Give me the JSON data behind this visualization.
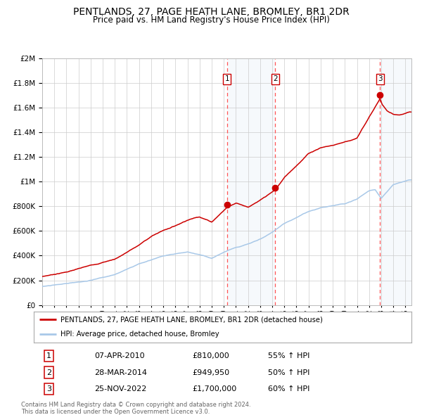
{
  "title": "PENTLANDS, 27, PAGE HEATH LANE, BROMLEY, BR1 2DR",
  "subtitle": "Price paid vs. HM Land Registry's House Price Index (HPI)",
  "title_fontsize": 10,
  "subtitle_fontsize": 8.5,
  "background_color": "#ffffff",
  "plot_bg_color": "#ffffff",
  "grid_color": "#cccccc",
  "red_line_color": "#cc0000",
  "blue_line_color": "#a8c8e8",
  "shade_color": "#dce9f5",
  "dashed_color": "#ff5555",
  "marker_color": "#cc0000",
  "sale_dates": [
    2010.27,
    2014.24,
    2022.9
  ],
  "sale_prices": [
    810000,
    949950,
    1700000
  ],
  "sale_labels": [
    "1",
    "2",
    "3"
  ],
  "legend_line1": "PENTLANDS, 27, PAGE HEATH LANE, BROMLEY, BR1 2DR (detached house)",
  "legend_line2": "HPI: Average price, detached house, Bromley",
  "table_data": [
    [
      "1",
      "07-APR-2010",
      "£810,000",
      "55% ↑ HPI"
    ],
    [
      "2",
      "28-MAR-2014",
      "£949,950",
      "50% ↑ HPI"
    ],
    [
      "3",
      "25-NOV-2022",
      "£1,700,000",
      "60% ↑ HPI"
    ]
  ],
  "footnote": "Contains HM Land Registry data © Crown copyright and database right 2024.\nThis data is licensed under the Open Government Licence v3.0.",
  "ylim": [
    0,
    2000000
  ],
  "xlim_start": 1995.0,
  "xlim_end": 2025.5
}
